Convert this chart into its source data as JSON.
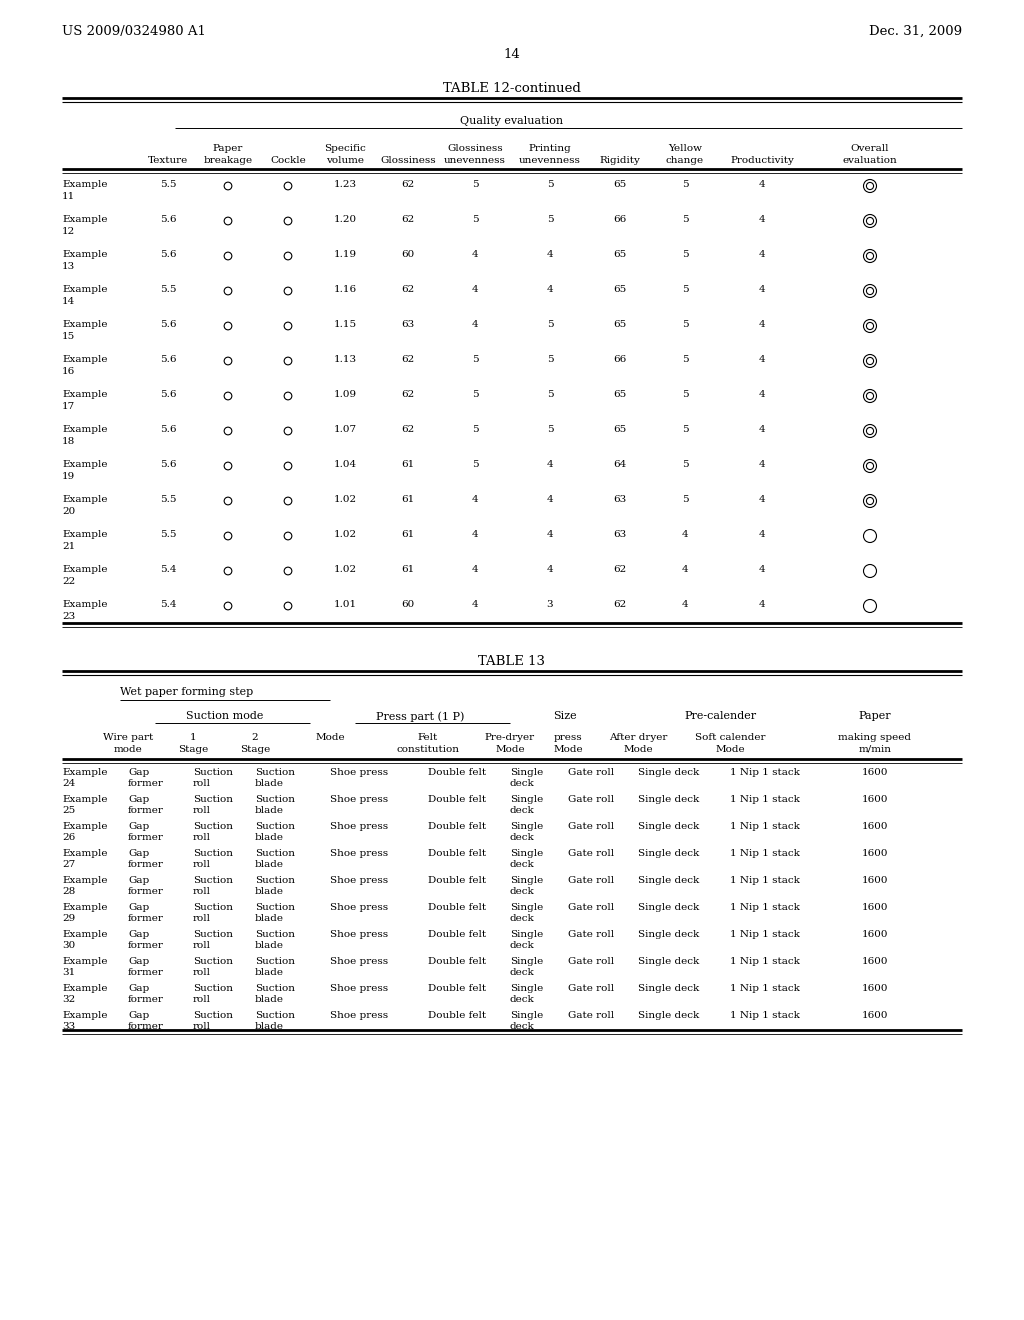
{
  "page_header_left": "US 2009/0324980 A1",
  "page_header_right": "Dec. 31, 2009",
  "page_number": "14",
  "table12_title": "TABLE 12-continued",
  "table12_quality_header": "Quality evaluation",
  "table12_rows": [
    [
      "Example",
      "11",
      "5.5",
      "1.23",
      "62",
      "5",
      "5",
      "65",
      "5",
      "4",
      "double_circle"
    ],
    [
      "Example",
      "12",
      "5.6",
      "1.20",
      "62",
      "5",
      "5",
      "66",
      "5",
      "4",
      "double_circle"
    ],
    [
      "Example",
      "13",
      "5.6",
      "1.19",
      "60",
      "4",
      "4",
      "65",
      "5",
      "4",
      "double_circle"
    ],
    [
      "Example",
      "14",
      "5.5",
      "1.16",
      "62",
      "4",
      "4",
      "65",
      "5",
      "4",
      "double_circle"
    ],
    [
      "Example",
      "15",
      "5.6",
      "1.15",
      "63",
      "4",
      "5",
      "65",
      "5",
      "4",
      "double_circle"
    ],
    [
      "Example",
      "16",
      "5.6",
      "1.13",
      "62",
      "5",
      "5",
      "66",
      "5",
      "4",
      "double_circle"
    ],
    [
      "Example",
      "17",
      "5.6",
      "1.09",
      "62",
      "5",
      "5",
      "65",
      "5",
      "4",
      "double_circle"
    ],
    [
      "Example",
      "18",
      "5.6",
      "1.07",
      "62",
      "5",
      "5",
      "65",
      "5",
      "4",
      "double_circle"
    ],
    [
      "Example",
      "19",
      "5.6",
      "1.04",
      "61",
      "5",
      "4",
      "64",
      "5",
      "4",
      "double_circle"
    ],
    [
      "Example",
      "20",
      "5.5",
      "1.02",
      "61",
      "4",
      "4",
      "63",
      "5",
      "4",
      "double_circle"
    ],
    [
      "Example",
      "21",
      "5.5",
      "1.02",
      "61",
      "4",
      "4",
      "63",
      "4",
      "4",
      "circle"
    ],
    [
      "Example",
      "22",
      "5.4",
      "1.02",
      "61",
      "4",
      "4",
      "62",
      "4",
      "4",
      "circle"
    ],
    [
      "Example",
      "23",
      "5.4",
      "1.01",
      "60",
      "4",
      "3",
      "62",
      "4",
      "4",
      "circle"
    ]
  ],
  "table13_title": "TABLE 13",
  "table13_wet_header": "Wet paper forming step",
  "table13_suction_header": "Suction mode",
  "table13_press_header": "Press part (1 P)",
  "table13_size_header": "Size",
  "table13_prec_header": "Pre-calender",
  "table13_paper_header": "Paper",
  "table13_rows": [
    [
      "Example",
      "24",
      "Gap",
      "former",
      "Suction",
      "roll",
      "Suction",
      "blade",
      "Shoe press",
      "Double felt",
      "Single",
      "deck",
      "Gate roll",
      "Single deck",
      "1 Nip 1 stack",
      "1600"
    ],
    [
      "Example",
      "25",
      "Gap",
      "former",
      "Suction",
      "roll",
      "Suction",
      "blade",
      "Shoe press",
      "Double felt",
      "Single",
      "deck",
      "Gate roll",
      "Single deck",
      "1 Nip 1 stack",
      "1600"
    ],
    [
      "Example",
      "26",
      "Gap",
      "former",
      "Suction",
      "roll",
      "Suction",
      "blade",
      "Shoe press",
      "Double felt",
      "Single",
      "deck",
      "Gate roll",
      "Single deck",
      "1 Nip 1 stack",
      "1600"
    ],
    [
      "Example",
      "27",
      "Gap",
      "former",
      "Suction",
      "roll",
      "Suction",
      "blade",
      "Shoe press",
      "Double felt",
      "Single",
      "deck",
      "Gate roll",
      "Single deck",
      "1 Nip 1 stack",
      "1600"
    ],
    [
      "Example",
      "28",
      "Gap",
      "former",
      "Suction",
      "roll",
      "Suction",
      "blade",
      "Shoe press",
      "Double felt",
      "Single",
      "deck",
      "Gate roll",
      "Single deck",
      "1 Nip 1 stack",
      "1600"
    ],
    [
      "Example",
      "29",
      "Gap",
      "former",
      "Suction",
      "roll",
      "Suction",
      "blade",
      "Shoe press",
      "Double felt",
      "Single",
      "deck",
      "Gate roll",
      "Single deck",
      "1 Nip 1 stack",
      "1600"
    ],
    [
      "Example",
      "30",
      "Gap",
      "former",
      "Suction",
      "roll",
      "Suction",
      "blade",
      "Shoe press",
      "Double felt",
      "Single",
      "deck",
      "Gate roll",
      "Single deck",
      "1 Nip 1 stack",
      "1600"
    ],
    [
      "Example",
      "31",
      "Gap",
      "former",
      "Suction",
      "roll",
      "Suction",
      "blade",
      "Shoe press",
      "Double felt",
      "Single",
      "deck",
      "Gate roll",
      "Single deck",
      "1 Nip 1 stack",
      "1600"
    ],
    [
      "Example",
      "32",
      "Gap",
      "former",
      "Suction",
      "roll",
      "Suction",
      "blade",
      "Shoe press",
      "Double felt",
      "Single",
      "deck",
      "Gate roll",
      "Single deck",
      "1 Nip 1 stack",
      "1600"
    ],
    [
      "Example",
      "33",
      "Gap",
      "former",
      "Suction",
      "roll",
      "Suction",
      "blade",
      "Shoe press",
      "Double felt",
      "Single",
      "deck",
      "Gate roll",
      "Single deck",
      "1 Nip 1 stack",
      "1600"
    ]
  ],
  "bg_color": "#ffffff",
  "text_color": "#000000"
}
